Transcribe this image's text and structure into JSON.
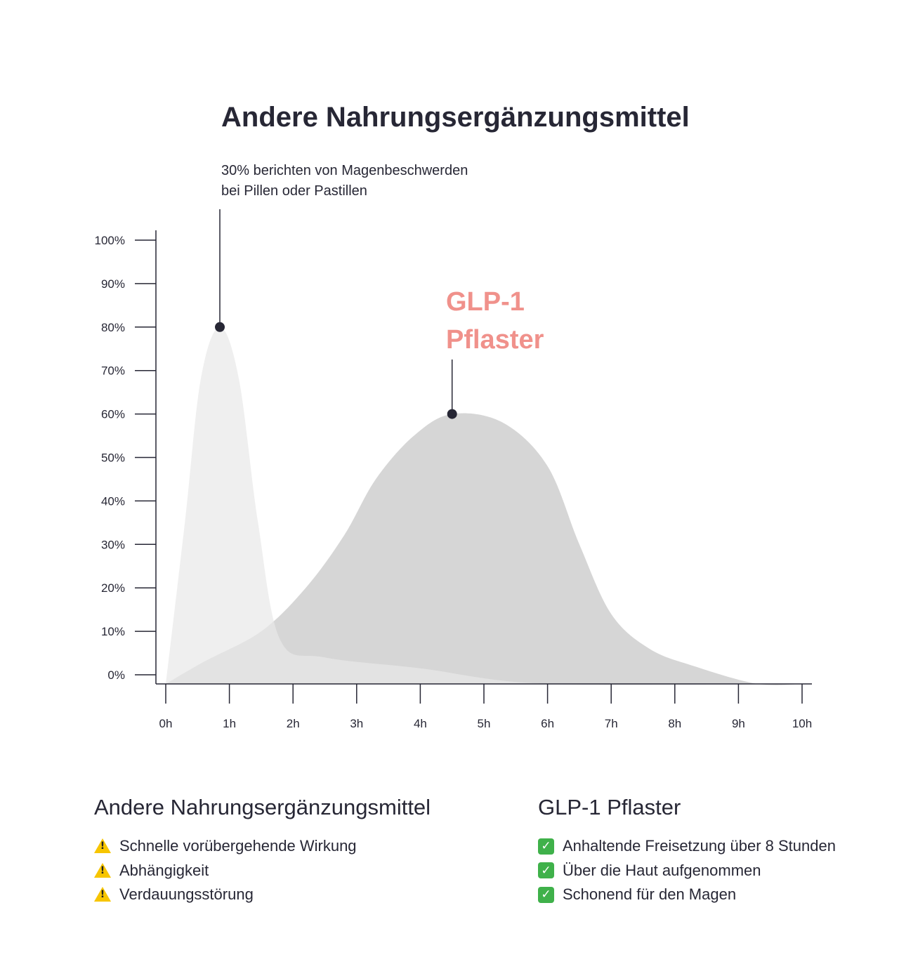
{
  "chart_data": {
    "type": "area",
    "title": "Andere Nahrungsergänzungsmittel",
    "y_ticks": [
      "100%",
      "90%",
      "80%",
      "70%",
      "60%",
      "50%",
      "40%",
      "30%",
      "20%",
      "10%",
      "0%"
    ],
    "x_ticks": [
      "0h",
      "1h",
      "2h",
      "3h",
      "4h",
      "5h",
      "6h",
      "7h",
      "8h",
      "9h",
      "10h"
    ],
    "ylim": [
      0,
      100
    ],
    "xlim": [
      0,
      10
    ],
    "series": [
      {
        "key": "andere",
        "color": "#e8e8e8",
        "points": [
          [
            0.0,
            0
          ],
          [
            0.3,
            35
          ],
          [
            0.55,
            68
          ],
          [
            0.85,
            80
          ],
          [
            1.15,
            68
          ],
          [
            1.45,
            35
          ],
          [
            1.8,
            8
          ],
          [
            2.5,
            4
          ],
          [
            4.0,
            1.5
          ],
          [
            6.0,
            0
          ],
          [
            10.0,
            0
          ]
        ]
      },
      {
        "key": "glp1",
        "color": "#d6d6d6",
        "points": [
          [
            0.0,
            0
          ],
          [
            0.6,
            3
          ],
          [
            1.5,
            10
          ],
          [
            2.2,
            20
          ],
          [
            2.8,
            32
          ],
          [
            3.3,
            45
          ],
          [
            3.9,
            55
          ],
          [
            4.5,
            60
          ],
          [
            5.3,
            58
          ],
          [
            6.0,
            48
          ],
          [
            6.5,
            30
          ],
          [
            7.0,
            14
          ],
          [
            7.6,
            6
          ],
          [
            8.3,
            2
          ],
          [
            9.3,
            0
          ],
          [
            10.0,
            0
          ]
        ]
      }
    ],
    "annotations": [
      {
        "series": "andere",
        "x": 0.85,
        "y": 80,
        "text_lines": [
          "30% berichten von Magenbeschwerden",
          "bei Pillen oder Pastillen"
        ]
      },
      {
        "series": "glp1",
        "x": 4.5,
        "y": 60,
        "text_lines": [
          "GLP-1",
          "Pflaster"
        ],
        "color": "#f0918b"
      }
    ]
  },
  "legend": {
    "left": {
      "heading": "Andere Nahrungsergänzungsmittel",
      "icon": "warning-icon",
      "items": [
        "Schnelle vorübergehende Wirkung",
        "Abhängigkeit",
        "Verdauungsstörung"
      ]
    },
    "right": {
      "heading": "GLP-1 Pflaster",
      "icon": "check-icon",
      "items": [
        "Anhaltende Freisetzung über 8 Stunden",
        "Über die Haut aufgenommen",
        "Schonend für den Magen"
      ]
    }
  }
}
